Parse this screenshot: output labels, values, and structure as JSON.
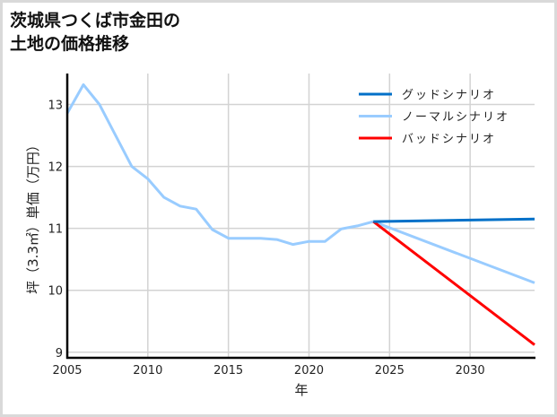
{
  "title_line1": "茨城県つくば市金田の",
  "title_line2": "土地の価格推移",
  "chart_data": {
    "type": "line",
    "title": "茨城県つくば市金田の土地の価格推移",
    "xlabel": "年",
    "ylabel": "坪（3.3㎡）単価（万円）",
    "xlim": [
      2005,
      2034
    ],
    "ylim": [
      8.91,
      13.5
    ],
    "xticks": [
      2005,
      2010,
      2015,
      2020,
      2025,
      2030
    ],
    "yticks": [
      9,
      10,
      11,
      12,
      13
    ],
    "grid": true,
    "legend_position": "upper right",
    "series": [
      {
        "name": "グッドシナリオ",
        "color": "#0070c8",
        "x": [
          2024,
          2034
        ],
        "values": [
          11.11,
          11.15
        ]
      },
      {
        "name": "ノーマルシナリオ",
        "color": "#99ccff",
        "x": [
          2005,
          2006,
          2007,
          2008,
          2009,
          2010,
          2011,
          2012,
          2013,
          2014,
          2015,
          2016,
          2017,
          2018,
          2019,
          2020,
          2021,
          2022,
          2023,
          2024,
          2034
        ],
        "values": [
          12.86,
          13.32,
          13.0,
          12.5,
          12.0,
          11.8,
          11.5,
          11.36,
          11.31,
          10.98,
          10.84,
          10.84,
          10.84,
          10.82,
          10.74,
          10.79,
          10.79,
          10.99,
          11.04,
          11.11,
          10.12
        ]
      },
      {
        "name": "バッドシナリオ",
        "color": "#ff0000",
        "x": [
          2024,
          2034
        ],
        "values": [
          11.11,
          9.12
        ]
      }
    ]
  }
}
